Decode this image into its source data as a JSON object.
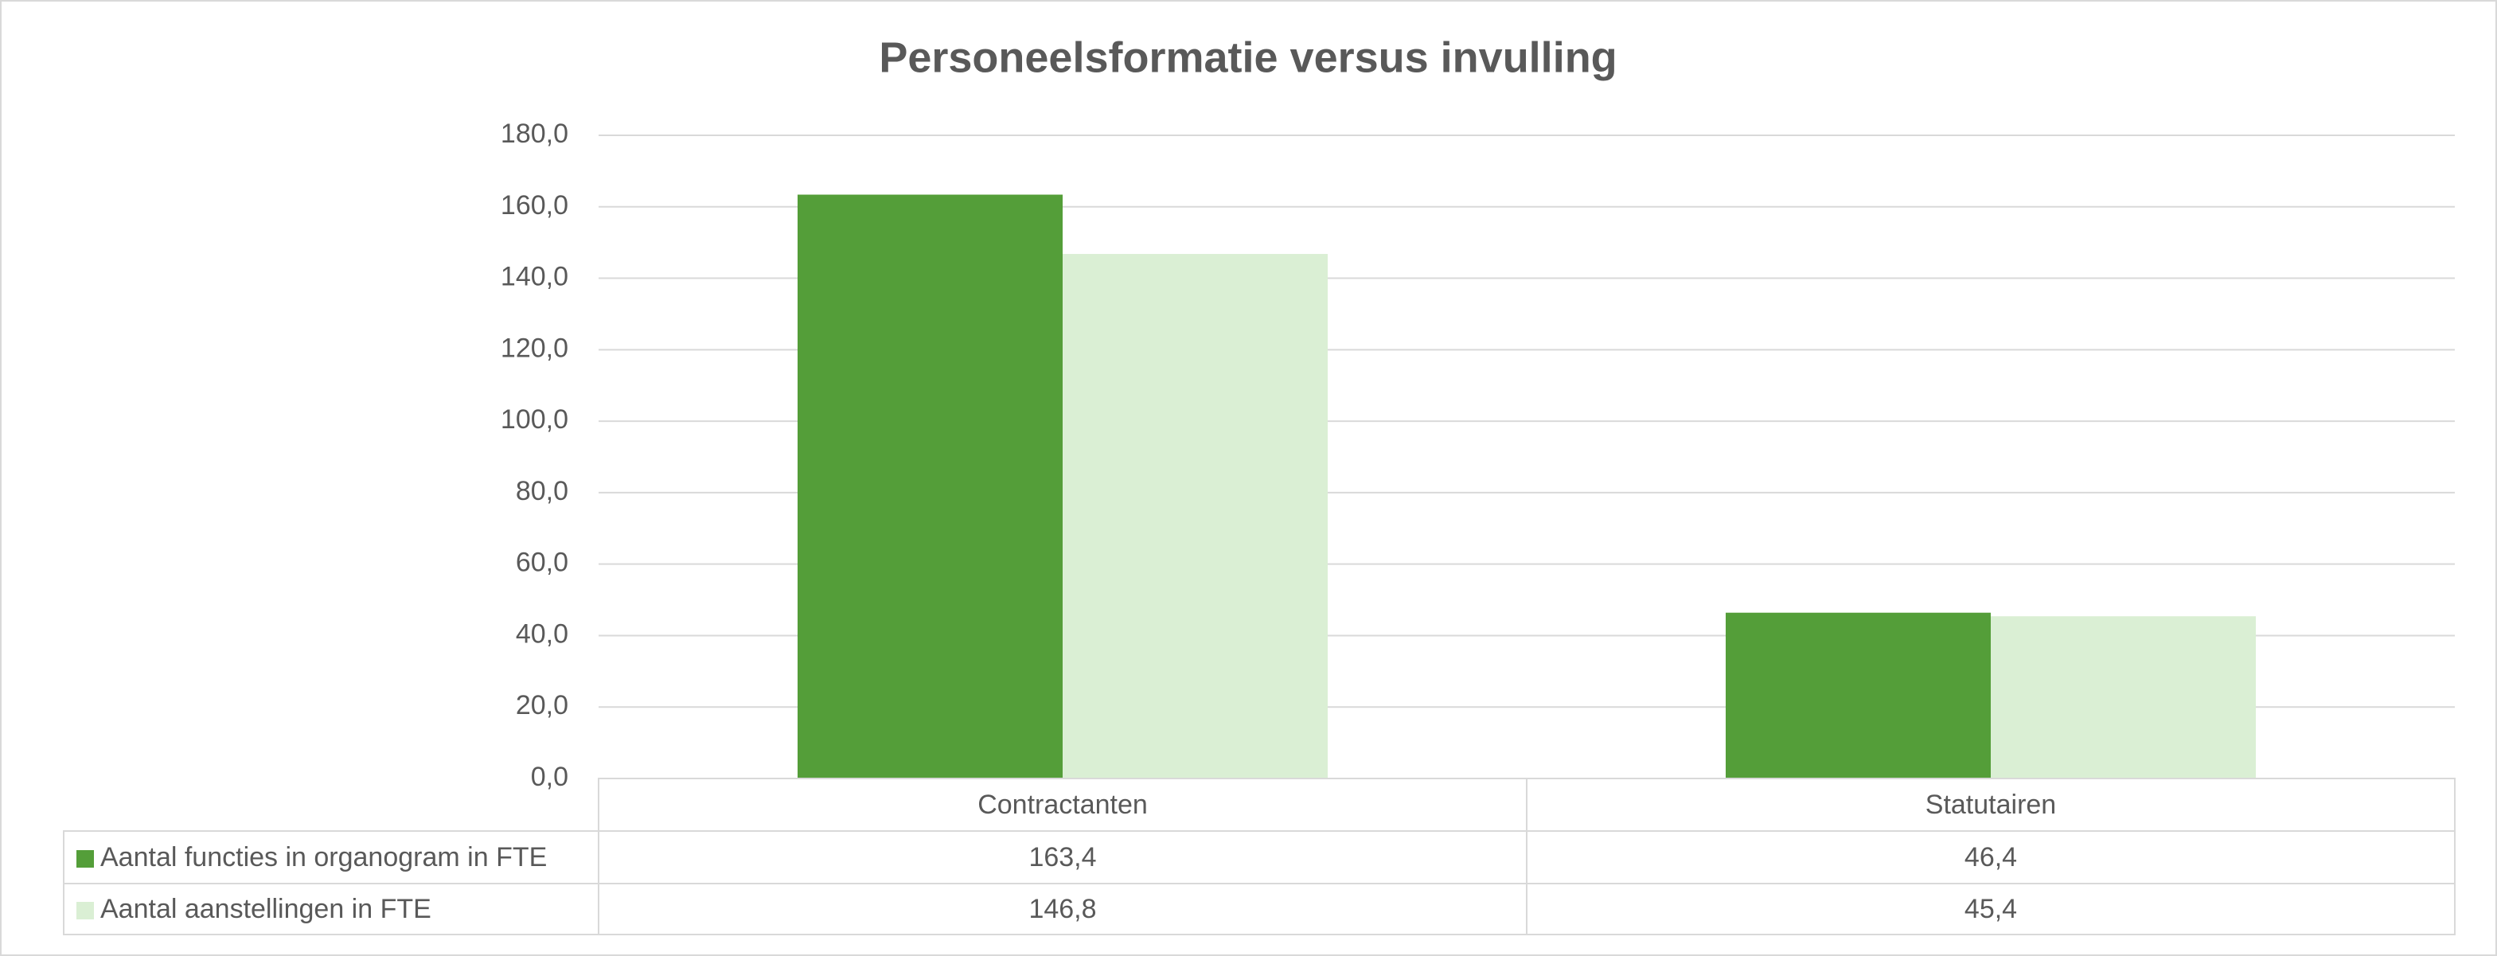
{
  "chart_data": {
    "type": "bar",
    "title": "Personeelsformatie versus invulling",
    "categories": [
      "Contractanten",
      "Statutairen"
    ],
    "series": [
      {
        "name": "Aantal functies in organogram in FTE",
        "color": "#549e39",
        "values": [
          163.4,
          46.4
        ],
        "value_labels": [
          "163,4",
          "46,4"
        ]
      },
      {
        "name": "Aantal aanstellingen in FTE",
        "color": "#daefd4",
        "values": [
          146.8,
          45.4
        ],
        "value_labels": [
          "146,8",
          "45,4"
        ]
      }
    ],
    "ylim": [
      0,
      180
    ],
    "yticks": [
      {
        "value": 0,
        "label": "0,0"
      },
      {
        "value": 20,
        "label": "20,0"
      },
      {
        "value": 40,
        "label": "40,0"
      },
      {
        "value": 60,
        "label": "60,0"
      },
      {
        "value": 80,
        "label": "80,0"
      },
      {
        "value": 100,
        "label": "100,0"
      },
      {
        "value": 120,
        "label": "120,0"
      },
      {
        "value": 140,
        "label": "140,0"
      },
      {
        "value": 160,
        "label": "160,0"
      },
      {
        "value": 180,
        "label": "180,0"
      }
    ],
    "grid": true
  }
}
